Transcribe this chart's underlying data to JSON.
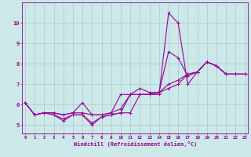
{
  "xlabel": "Windchill (Refroidissement éolien,°C)",
  "background_color": "#cce8e8",
  "line_color": "#990099",
  "grid_color": "#aacccc",
  "x_hours": [
    0,
    1,
    2,
    3,
    4,
    5,
    6,
    7,
    8,
    9,
    10,
    11,
    12,
    13,
    14,
    15,
    16,
    17,
    18,
    19,
    20,
    21,
    22,
    23
  ],
  "series": [
    [
      6.1,
      5.5,
      5.6,
      5.5,
      5.2,
      5.5,
      5.5,
      5.0,
      5.4,
      5.5,
      5.6,
      5.6,
      6.5,
      6.5,
      6.5,
      10.5,
      10.0,
      7.0,
      7.6,
      8.1,
      7.9,
      7.5,
      7.5,
      7.5
    ],
    [
      6.1,
      5.5,
      5.6,
      5.5,
      5.3,
      5.5,
      5.5,
      5.1,
      5.4,
      5.5,
      5.6,
      6.5,
      6.8,
      6.6,
      6.6,
      8.6,
      8.3,
      7.4,
      7.6,
      8.1,
      7.9,
      7.5,
      7.5,
      7.5
    ],
    [
      6.1,
      5.5,
      5.6,
      5.6,
      5.5,
      5.6,
      5.6,
      5.5,
      5.5,
      5.6,
      5.8,
      6.5,
      6.5,
      6.5,
      6.6,
      7.0,
      7.2,
      7.5,
      7.6,
      8.1,
      7.9,
      7.5,
      7.5,
      7.5
    ],
    [
      6.1,
      5.5,
      5.6,
      5.6,
      5.5,
      5.6,
      6.1,
      5.5,
      5.5,
      5.6,
      6.5,
      6.5,
      6.5,
      6.5,
      6.6,
      6.8,
      7.0,
      7.5,
      7.6,
      8.1,
      7.9,
      7.5,
      7.5,
      7.5
    ]
  ],
  "ylim": [
    4.6,
    11.0
  ],
  "yticks": [
    5,
    6,
    7,
    8,
    9,
    10
  ],
  "xticks": [
    0,
    1,
    2,
    3,
    4,
    5,
    6,
    7,
    8,
    9,
    10,
    11,
    12,
    13,
    14,
    15,
    16,
    17,
    18,
    19,
    20,
    21,
    22,
    23
  ],
  "marker": "+",
  "markersize": 3,
  "linewidth": 0.8
}
